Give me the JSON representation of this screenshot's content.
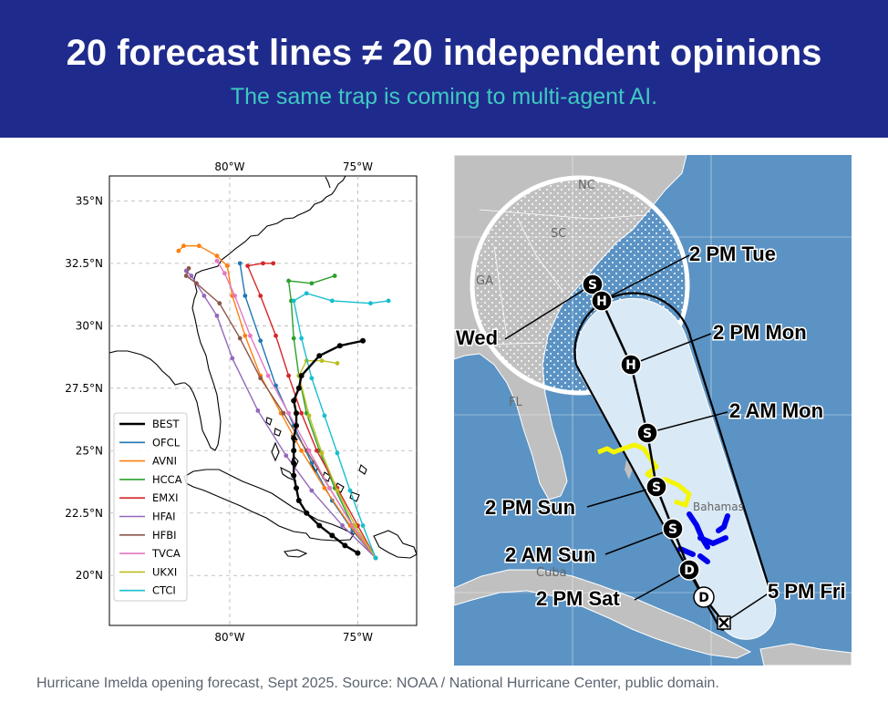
{
  "header": {
    "title": "20 forecast lines ≠ 20 independent opinions",
    "subtitle": "The same trap is coming to multi-agent AI."
  },
  "caption": "Hurricane Imelda opening forecast, Sept 2025. Source: NOAA / National Hurricane Center, public domain.",
  "chart_data": [
    {
      "type": "line",
      "title": "",
      "xlabel": "",
      "ylabel": "",
      "x_ticks": [
        "80°W",
        "75°W"
      ],
      "y_ticks": [
        "35°N",
        "32.5°N",
        "30°N",
        "27.5°N",
        "25°N",
        "22.5°N",
        "20°N"
      ],
      "xlim": [
        -84.7,
        -72.7
      ],
      "ylim": [
        18.0,
        36.0
      ],
      "grid": true,
      "legend_position": "lower-left",
      "series": [
        {
          "name": "BEST",
          "color": "#000000",
          "points": [
            [
              -75.0,
              20.9
            ],
            [
              -75.5,
              21.2
            ],
            [
              -76.0,
              21.6
            ],
            [
              -76.5,
              22.0
            ],
            [
              -77.0,
              22.5
            ],
            [
              -77.3,
              23.0
            ],
            [
              -77.4,
              23.5
            ],
            [
              -77.5,
              24.0
            ],
            [
              -77.5,
              24.5
            ],
            [
              -77.5,
              25.0
            ],
            [
              -77.5,
              25.5
            ],
            [
              -77.4,
              26.0
            ],
            [
              -77.4,
              26.5
            ],
            [
              -77.5,
              27.0
            ],
            [
              -77.3,
              27.5
            ],
            [
              -77.2,
              28.0
            ],
            [
              -76.5,
              28.8
            ],
            [
              -75.7,
              29.2
            ],
            [
              -74.8,
              29.4
            ]
          ]
        },
        {
          "name": "OFCL",
          "color": "#1f77b4",
          "points": [
            [
              -74.3,
              20.7
            ],
            [
              -75.2,
              21.8
            ],
            [
              -76.0,
              23.0
            ],
            [
              -76.8,
              24.5
            ],
            [
              -77.5,
              26.0
            ],
            [
              -78.2,
              27.6
            ],
            [
              -78.8,
              29.4
            ],
            [
              -79.4,
              31.2
            ],
            [
              -79.6,
              32.5
            ]
          ]
        },
        {
          "name": "AVNI",
          "color": "#ff7f0e",
          "points": [
            [
              -74.3,
              20.7
            ],
            [
              -75.3,
              22.0
            ],
            [
              -76.3,
              23.5
            ],
            [
              -77.2,
              25.0
            ],
            [
              -78.0,
              26.5
            ],
            [
              -78.8,
              28.0
            ],
            [
              -79.4,
              29.6
            ],
            [
              -79.9,
              31.2
            ],
            [
              -80.1,
              32.4
            ],
            [
              -80.5,
              32.8
            ],
            [
              -81.2,
              33.2
            ],
            [
              -81.8,
              33.2
            ],
            [
              -82.0,
              33.0
            ]
          ]
        },
        {
          "name": "HCCA",
          "color": "#2ca02c",
          "points": [
            [
              -74.3,
              20.7
            ],
            [
              -75.2,
              22.0
            ],
            [
              -75.9,
              23.5
            ],
            [
              -76.5,
              25.0
            ],
            [
              -77.0,
              26.5
            ],
            [
              -77.3,
              28.0
            ],
            [
              -77.5,
              29.5
            ],
            [
              -77.6,
              31.0
            ],
            [
              -77.7,
              31.8
            ],
            [
              -76.8,
              31.7
            ],
            [
              -75.9,
              32.0
            ]
          ]
        },
        {
          "name": "EMXI",
          "color": "#d62728",
          "points": [
            [
              -74.3,
              20.7
            ],
            [
              -75.0,
              22.0
            ],
            [
              -75.8,
              23.5
            ],
            [
              -76.6,
              25.0
            ],
            [
              -77.2,
              26.5
            ],
            [
              -77.7,
              28.0
            ],
            [
              -78.2,
              29.6
            ],
            [
              -78.8,
              31.2
            ],
            [
              -79.3,
              32.4
            ],
            [
              -78.7,
              32.5
            ],
            [
              -78.3,
              32.5
            ]
          ]
        },
        {
          "name": "HFAI",
          "color": "#9467bd",
          "points": [
            [
              -74.3,
              20.7
            ],
            [
              -75.6,
              22.0
            ],
            [
              -76.8,
              23.4
            ],
            [
              -77.8,
              24.8
            ],
            [
              -78.9,
              26.6
            ],
            [
              -79.9,
              28.7
            ],
            [
              -80.5,
              30.4
            ],
            [
              -81.0,
              31.2
            ],
            [
              -81.5,
              32.0
            ],
            [
              -81.7,
              32.2
            ]
          ]
        },
        {
          "name": "HFBI",
          "color": "#8c564b",
          "points": [
            [
              -74.3,
              20.7
            ],
            [
              -75.2,
              22.0
            ],
            [
              -76.1,
              23.5
            ],
            [
              -77.0,
              25.0
            ],
            [
              -77.9,
              26.5
            ],
            [
              -78.8,
              27.9
            ],
            [
              -79.6,
              29.5
            ],
            [
              -80.4,
              30.9
            ],
            [
              -81.3,
              31.7
            ],
            [
              -81.7,
              32.0
            ],
            [
              -81.6,
              32.3
            ]
          ]
        },
        {
          "name": "TVCA",
          "color": "#e377c2",
          "points": [
            [
              -74.3,
              20.7
            ],
            [
              -75.2,
              22.0
            ],
            [
              -76.1,
              23.5
            ],
            [
              -76.9,
              25.0
            ],
            [
              -77.7,
              26.5
            ],
            [
              -78.5,
              28.0
            ],
            [
              -79.2,
              29.6
            ],
            [
              -79.8,
              31.2
            ],
            [
              -80.2,
              32.1
            ],
            [
              -80.5,
              32.6
            ]
          ]
        },
        {
          "name": "UKXI",
          "color": "#bcbd22",
          "points": [
            [
              -74.3,
              20.7
            ],
            [
              -75.1,
              22.0
            ],
            [
              -75.8,
              23.4
            ],
            [
              -76.4,
              24.9
            ],
            [
              -76.9,
              26.4
            ],
            [
              -77.3,
              28.0
            ],
            [
              -77.0,
              28.6
            ],
            [
              -76.4,
              28.6
            ],
            [
              -75.8,
              28.5
            ]
          ]
        },
        {
          "name": "CTCI",
          "color": "#17becf",
          "points": [
            [
              -74.3,
              20.7
            ],
            [
              -74.8,
              22.0
            ],
            [
              -75.3,
              23.4
            ],
            [
              -75.8,
              24.9
            ],
            [
              -76.3,
              26.4
            ],
            [
              -76.8,
              27.9
            ],
            [
              -77.2,
              29.5
            ],
            [
              -77.5,
              31.0
            ],
            [
              -77.0,
              31.3
            ],
            [
              -76.0,
              31.0
            ],
            [
              -74.5,
              30.9
            ],
            [
              -73.8,
              31.0
            ]
          ]
        }
      ]
    },
    {
      "type": "other",
      "description_labels": {
        "time_labels": [
          "2 PM Tue",
          "2 PM Mon",
          "2 AM Mon",
          "2 PM Sun",
          "2 AM Sun",
          "2 PM Sat",
          "5 PM Fri",
          "Wed"
        ],
        "place_labels": [
          "NC",
          "SC",
          "GA",
          "FL",
          "Cuba",
          "Bahamas"
        ],
        "marker_letters": [
          "S",
          "H",
          "H",
          "S",
          "S",
          "S",
          "D",
          "D"
        ]
      }
    }
  ]
}
